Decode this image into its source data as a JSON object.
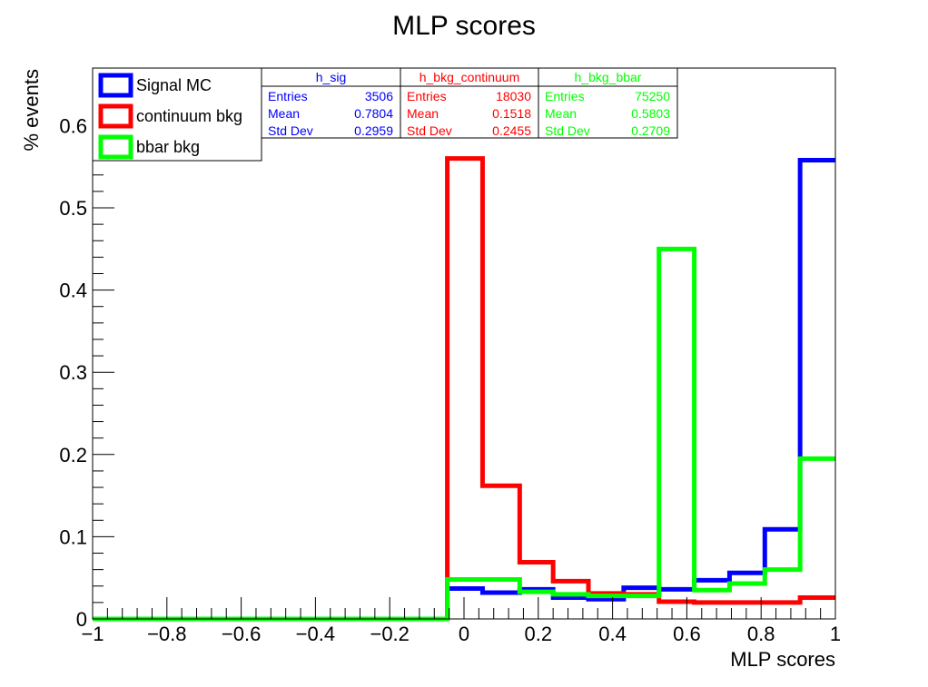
{
  "chart_data": {
    "type": "histogram",
    "title": "MLP scores",
    "xlabel": "MLP scores",
    "ylabel": "% events",
    "xlim": [
      -1,
      1
    ],
    "ylim": [
      0,
      0.67
    ],
    "x_ticks": [
      -1,
      -0.8,
      -0.6,
      -0.4,
      -0.2,
      0,
      0.2,
      0.4,
      0.6,
      0.8,
      1
    ],
    "x_tick_labels": [
      "−1",
      "−0.8",
      "−0.6",
      "−0.4",
      "−0.2",
      "0",
      "0.2",
      "0.4",
      "0.6",
      "0.8",
      "1"
    ],
    "y_ticks": [
      0,
      0.1,
      0.2,
      0.3,
      0.4,
      0.5,
      0.6
    ],
    "y_tick_labels": [
      "0",
      "0.1",
      "0.2",
      "0.3",
      "0.4",
      "0.5",
      "0.6"
    ],
    "bin_edges": [
      -1,
      -0.9,
      -0.8,
      -0.7,
      -0.6,
      -0.5,
      -0.4,
      -0.3,
      -0.2,
      -0.1,
      -0.045,
      0.05,
      0.15,
      0.24,
      0.335,
      0.43,
      0.525,
      0.62,
      0.715,
      0.81,
      0.905,
      1.0
    ],
    "series": [
      {
        "name": "Signal MC",
        "color": "#0000ff",
        "values": [
          0,
          0,
          0,
          0,
          0,
          0,
          0,
          0,
          0,
          0,
          0.037,
          0.032,
          0.036,
          0.026,
          0.024,
          0.038,
          0.036,
          0.047,
          0.056,
          0.109,
          0.558
        ]
      },
      {
        "name": "continuum bkg",
        "color": "#ff0000",
        "values": [
          0,
          0,
          0,
          0,
          0,
          0,
          0,
          0,
          0,
          0,
          0.56,
          0.162,
          0.069,
          0.046,
          0.031,
          0.03,
          0.021,
          0.02,
          0.02,
          0.02,
          0.026
        ]
      },
      {
        "name": "bbar bkg",
        "color": "#00ff00",
        "values": [
          0,
          0,
          0,
          0,
          0,
          0,
          0,
          0,
          0,
          0,
          0.048,
          0.048,
          0.033,
          0.03,
          0.028,
          0.028,
          0.45,
          0.035,
          0.043,
          0.06,
          0.195
        ]
      }
    ],
    "legend": {
      "position": "top-left",
      "entries": [
        {
          "label": "Signal MC",
          "color": "#0000ff"
        },
        {
          "label": "continuum bkg",
          "color": "#ff0000"
        },
        {
          "label": "bbar bkg",
          "color": "#00ff00"
        }
      ]
    },
    "stat_boxes": [
      {
        "title": "h_sig",
        "color": "#0000ff",
        "rows": [
          [
            "Entries",
            "3506"
          ],
          [
            "Mean",
            "0.7804"
          ],
          [
            "Std Dev",
            "0.2959"
          ]
        ]
      },
      {
        "title": "h_bkg_continuum",
        "color": "#ff0000",
        "rows": [
          [
            "Entries",
            "18030"
          ],
          [
            "Mean",
            "0.1518"
          ],
          [
            "Std Dev",
            "0.2455"
          ]
        ]
      },
      {
        "title": "h_bkg_bbar",
        "color": "#00ff00",
        "rows": [
          [
            "Entries",
            "75250"
          ],
          [
            "Mean",
            "0.5803"
          ],
          [
            "Std Dev",
            "0.2709"
          ]
        ]
      }
    ]
  }
}
